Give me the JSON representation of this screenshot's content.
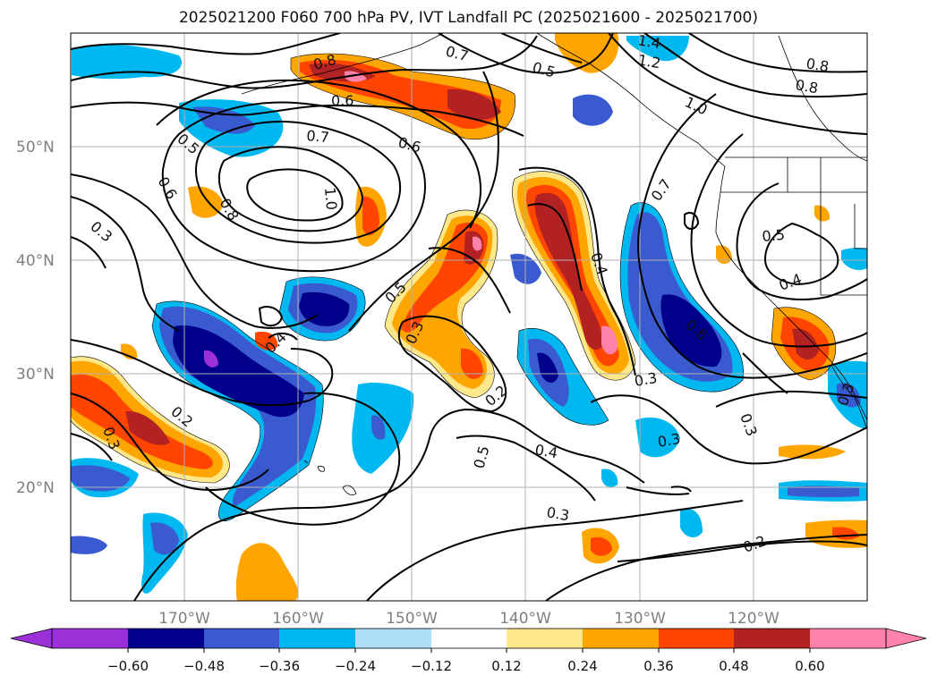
{
  "title": "2025021200 F060 700 hPa PV, IVT Landfall PC (2025021600 - 2025021700)",
  "map": {
    "lon_range": [
      -180,
      -110
    ],
    "lat_range": [
      10,
      60
    ],
    "lat_ticks": [
      "50°N",
      "40°N",
      "30°N",
      "20°N"
    ],
    "lon_ticks": [
      "170°W",
      "160°W",
      "150°W",
      "140°W",
      "130°W",
      "120°W"
    ]
  },
  "colorbar": {
    "ticks": [
      "−0.60",
      "−0.48",
      "−0.36",
      "−0.24",
      "−0.12",
      "0.12",
      "0.24",
      "0.36",
      "0.48",
      "0.60"
    ],
    "colors": [
      "#9b30d8",
      "#00008b",
      "#3a5bd0",
      "#00b8f0",
      "#aee0fa",
      "#ffffff",
      "#ffe88a",
      "#ffa500",
      "#ff4500",
      "#b22222",
      "#ff82ab"
    ]
  },
  "contour_labels": [
    "0.8",
    "0.6",
    "0.7",
    "0.5",
    "1.4",
    "1.2",
    "0.8",
    "0.8",
    "1.0",
    "0.5",
    "0.7",
    "0.6",
    "0.6",
    "0.8",
    "1.0",
    "0.3",
    "0.7",
    "0.5",
    "0.4",
    "0.5",
    "0.4",
    "0.4",
    "0.3",
    "0.6",
    "0.2",
    "0.3",
    "0.3",
    "0.2",
    "0.3",
    "0.5",
    "0.4",
    "0.3",
    "0.3",
    "0.2",
    "0.3"
  ]
}
